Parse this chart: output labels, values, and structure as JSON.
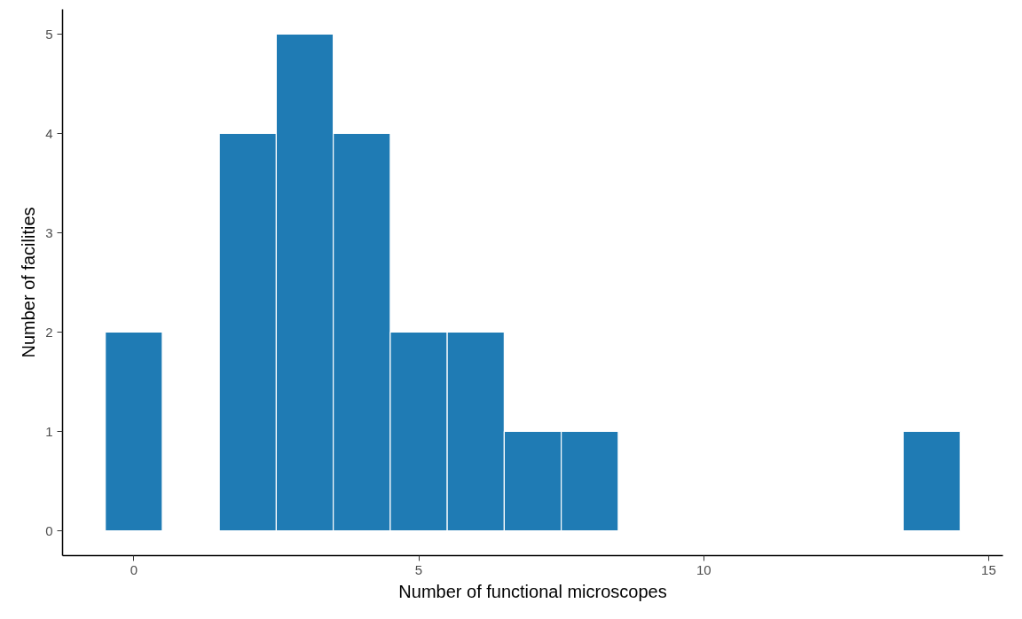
{
  "chart_data": {
    "type": "histogram",
    "xlabel": "Number of functional microscopes",
    "ylabel": "Number of facilities",
    "bins": [
      -0.5,
      0.5,
      1.5,
      2.5,
      3.5,
      4.5,
      5.5,
      6.5,
      7.5,
      8.5,
      9.5,
      10.5,
      11.5,
      12.5,
      13.5,
      14.5
    ],
    "values": [
      2,
      0,
      4,
      5,
      4,
      2,
      2,
      1,
      1,
      0,
      0,
      0,
      0,
      0,
      1
    ],
    "color": "#1f7bb4",
    "xlim": [
      -1.25,
      15.25
    ],
    "ylim": [
      -0.25,
      5.25
    ],
    "xticks": [
      0,
      5,
      10,
      15
    ],
    "yticks": [
      0,
      1,
      2,
      3,
      4,
      5
    ],
    "grid": false
  }
}
